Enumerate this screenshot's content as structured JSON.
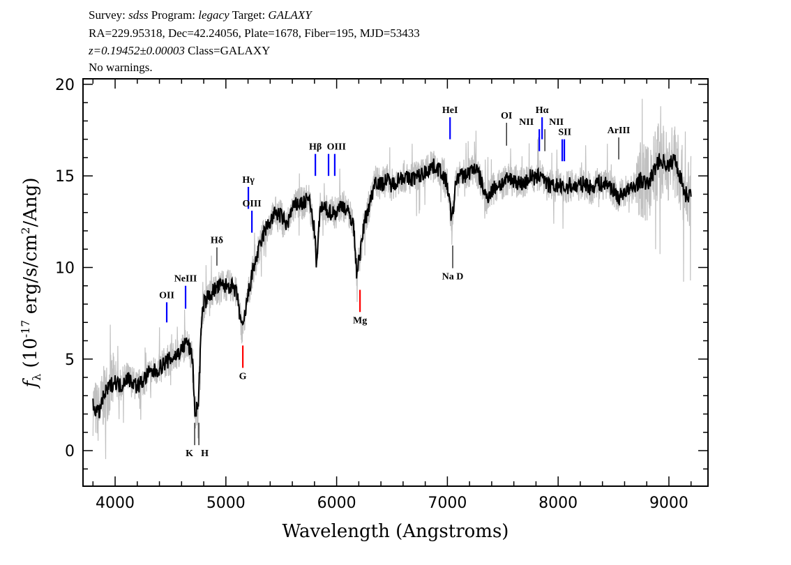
{
  "header": {
    "line1": {
      "survey_label": "Survey: ",
      "survey": "sdss",
      "program_label": " Program: ",
      "program": "legacy",
      "target_label": " Target: ",
      "target": "GALAXY"
    },
    "line2": "RA=229.95318, Dec=42.24056, Plate=1678, Fiber=195, MJD=53433",
    "line3": {
      "redshift": "z=0.19452±0.00003",
      "class": " Class=GALAXY"
    },
    "line4": "No warnings."
  },
  "chart_data": {
    "type": "line",
    "xlabel": "Wavelength (Angstroms)",
    "ylabel": {
      "f": "f",
      "sub": "λ",
      "pre": " (10",
      "exp": "-17",
      "mid": " erg/s/cm",
      "exp2": "2",
      "post": "/Ang)"
    },
    "xlim": [
      3710,
      9353
    ],
    "ylim": [
      -1.94,
      20.3
    ],
    "xticks": [
      4000,
      5000,
      6000,
      7000,
      8000,
      9000
    ],
    "yticks": [
      0,
      5,
      10,
      15,
      20
    ],
    "colors": {
      "flux": "#000000",
      "noise": "#c0c0c0",
      "emission": "#0000ff",
      "absorption": "#ff0000",
      "other": "#000000"
    },
    "series": {
      "x": [
        3800,
        3850,
        3900,
        3950,
        4000,
        4050,
        4100,
        4150,
        4200,
        4250,
        4300,
        4350,
        4400,
        4450,
        4500,
        4550,
        4600,
        4650,
        4700,
        4720,
        4750,
        4780,
        4800,
        4850,
        4900,
        4950,
        5000,
        5050,
        5100,
        5150,
        5200,
        5250,
        5300,
        5350,
        5400,
        5450,
        5500,
        5550,
        5600,
        5650,
        5700,
        5750,
        5800,
        5820,
        5850,
        5900,
        5950,
        6000,
        6050,
        6100,
        6150,
        6180,
        6220,
        6250,
        6300,
        6350,
        6400,
        6450,
        6500,
        6550,
        6600,
        6650,
        6700,
        6750,
        6800,
        6850,
        6900,
        6950,
        7000,
        7040,
        7080,
        7100,
        7150,
        7200,
        7250,
        7300,
        7350,
        7400,
        7450,
        7500,
        7550,
        7600,
        7650,
        7700,
        7750,
        7800,
        7850,
        7900,
        7950,
        8000,
        8050,
        8100,
        8150,
        8200,
        8250,
        8300,
        8350,
        8400,
        8450,
        8500,
        8550,
        8600,
        8650,
        8700,
        8750,
        8800,
        8850,
        8900,
        8950,
        9000,
        9050,
        9100,
        9150,
        9200
      ],
      "flux": [
        2.5,
        2.0,
        3.0,
        3.5,
        3.8,
        3.5,
        4.0,
        3.8,
        3.5,
        3.8,
        4.2,
        4.3,
        4.5,
        4.8,
        5.0,
        5.2,
        5.5,
        6.0,
        5.0,
        2.0,
        2.5,
        7.0,
        8.0,
        8.5,
        8.8,
        9.0,
        9.0,
        9.0,
        8.5,
        6.5,
        8.5,
        10.0,
        11.0,
        12.0,
        12.5,
        13.0,
        12.8,
        12.3,
        13.2,
        13.5,
        13.5,
        13.8,
        12.0,
        10.0,
        13.2,
        13.2,
        13.0,
        13.0,
        13.5,
        13.0,
        12.5,
        9.8,
        11.0,
        12.5,
        13.5,
        14.8,
        14.5,
        14.8,
        14.5,
        14.8,
        15.0,
        14.8,
        14.9,
        15.0,
        15.2,
        15.5,
        15.5,
        15.2,
        14.5,
        12.5,
        14.8,
        15.0,
        15.0,
        15.2,
        15.5,
        14.8,
        13.8,
        14.2,
        14.5,
        14.6,
        14.8,
        14.8,
        14.6,
        14.6,
        15.0,
        14.8,
        15.2,
        14.5,
        14.4,
        14.5,
        14.3,
        14.5,
        14.4,
        14.5,
        14.6,
        14.3,
        14.7,
        14.5,
        14.6,
        14.2,
        13.8,
        14.2,
        14.2,
        14.5,
        14.8,
        14.5,
        15.0,
        15.8,
        15.8,
        15.5,
        16.0,
        15.0,
        14.0,
        14.0
      ]
    },
    "lines": [
      {
        "name": "OII",
        "wave": 4466,
        "y0": 7.0,
        "y1": 8.1,
        "kind": "emission",
        "label_pos": "above"
      },
      {
        "name": "NeIII",
        "wave": 4636,
        "y0": 7.75,
        "y1": 9.0,
        "kind": "emission",
        "label_pos": "above"
      },
      {
        "name": "Hδ",
        "wave": 4919,
        "y0": 10.1,
        "y1": 11.1,
        "kind": "other",
        "label_pos": "above"
      },
      {
        "name": "Hγ",
        "wave": 5203,
        "y0": 13.2,
        "y1": 14.4,
        "kind": "emission",
        "label_pos": "above"
      },
      {
        "name": "OIII",
        "wave": 5235,
        "y0": 11.9,
        "y1": 13.1,
        "kind": "emission",
        "label_pos": "above"
      },
      {
        "name": "Hβ",
        "wave": 5808,
        "y0": 15.0,
        "y1": 16.2,
        "kind": "emission",
        "label_pos": "above"
      },
      {
        "name": "",
        "wave": 5927,
        "y0": 15.0,
        "y1": 16.2,
        "kind": "emission",
        "label_pos": "none"
      },
      {
        "name": "OIII",
        "wave": 5983,
        "y0": 15.0,
        "y1": 16.2,
        "kind": "emission",
        "label_pos": "above-left"
      },
      {
        "name": "HeI",
        "wave": 7024,
        "y0": 17.0,
        "y1": 18.2,
        "kind": "emission",
        "label_pos": "above"
      },
      {
        "name": "OI",
        "wave": 7534,
        "y0": 16.65,
        "y1": 17.9,
        "kind": "other",
        "label_pos": "above"
      },
      {
        "name": "NII",
        "wave": 7830,
        "y0": 16.35,
        "y1": 17.55,
        "kind": "emission",
        "label_pos": "above-left"
      },
      {
        "name": "Hα",
        "wave": 7855,
        "y0": 17.0,
        "y1": 18.2,
        "kind": "emission",
        "label_pos": "above"
      },
      {
        "name": "NII",
        "wave": 7880,
        "y0": 16.35,
        "y1": 17.55,
        "kind": "other",
        "label_pos": "above-right"
      },
      {
        "name": "",
        "wave": 8037,
        "y0": 15.8,
        "y1": 17.0,
        "kind": "emission",
        "label_pos": "none"
      },
      {
        "name": "SII",
        "wave": 8056,
        "y0": 15.8,
        "y1": 17.0,
        "kind": "emission",
        "label_pos": "above-left"
      },
      {
        "name": "ArIII",
        "wave": 8547,
        "y0": 15.9,
        "y1": 17.1,
        "kind": "other",
        "label_pos": "above"
      },
      {
        "name": "K",
        "wave": 4718,
        "y0": 0.3,
        "y1": 1.52,
        "kind": "other",
        "label_pos": "below-left"
      },
      {
        "name": "H",
        "wave": 4756,
        "y0": 0.3,
        "y1": 1.52,
        "kind": "other",
        "label_pos": "below-right"
      },
      {
        "name": "G",
        "wave": 5153,
        "y0": 4.52,
        "y1": 5.74,
        "kind": "absorption",
        "label_pos": "below"
      },
      {
        "name": "Mg",
        "wave": 6211,
        "y0": 7.57,
        "y1": 8.78,
        "kind": "absorption",
        "label_pos": "below"
      },
      {
        "name": "Na D",
        "wave": 7048,
        "y0": 9.96,
        "y1": 11.2,
        "kind": "other",
        "label_pos": "below"
      }
    ]
  }
}
